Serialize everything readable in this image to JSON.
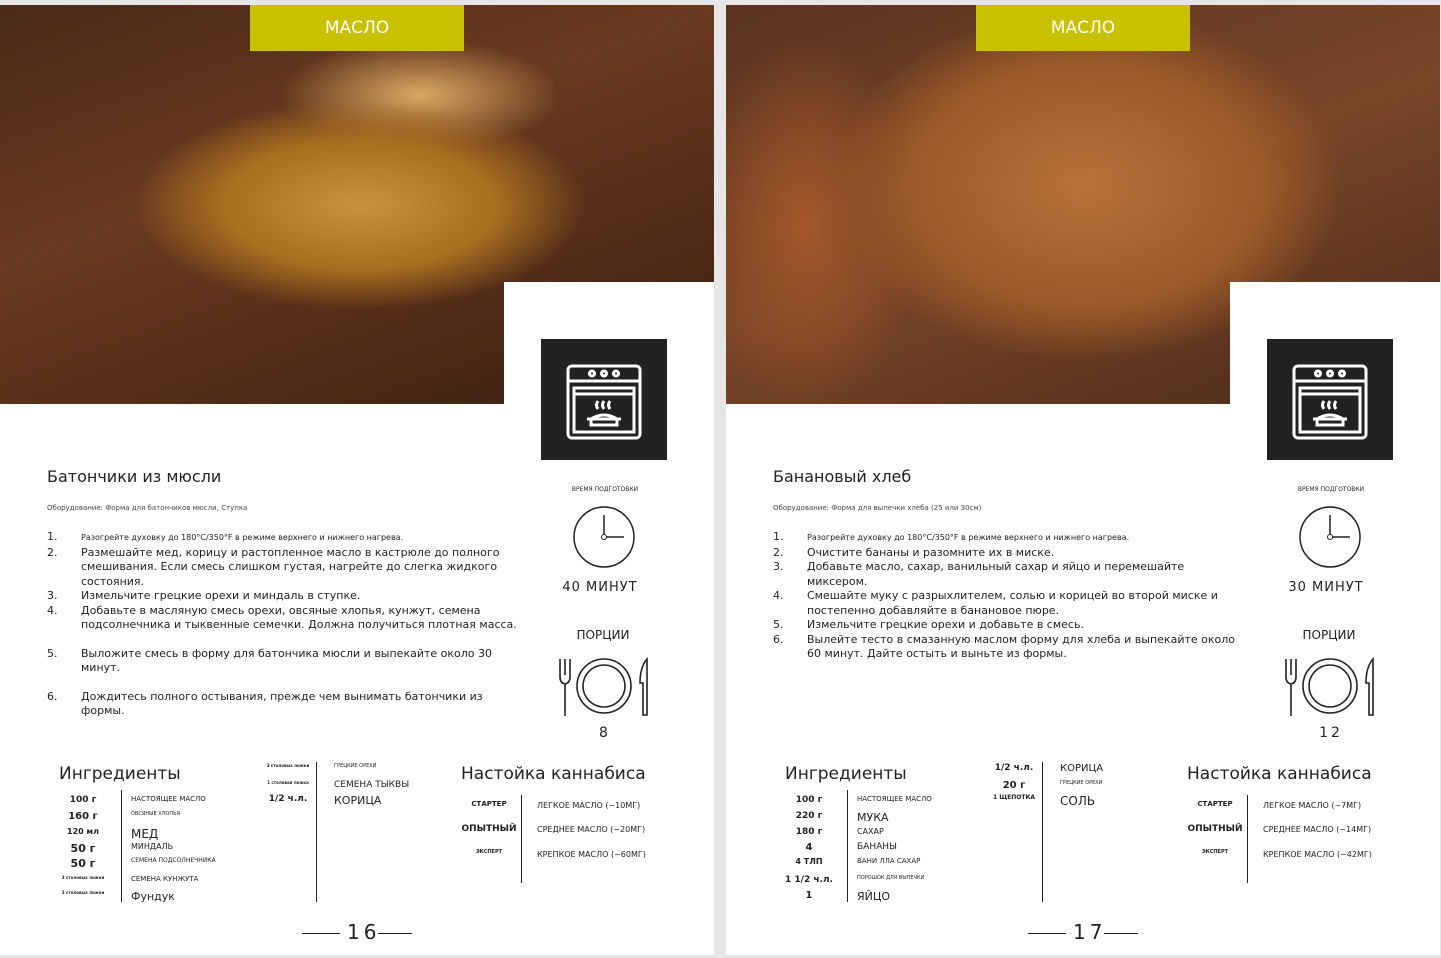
{
  "colors": {
    "tag": "#c9c100",
    "icon_box": "#222222"
  },
  "pages": [
    {
      "tag": "МАСЛО",
      "title": "Батончики из мюсли",
      "equipment": "Оборудование: Форма для батончиков мюсли, Ступка",
      "steps": [
        {
          "num": "1.",
          "text": "Разогрейте духовку до 180°C/350°F в режиме верхнего и нижнего нагрева.",
          "small": true
        },
        {
          "num": "2.",
          "text": "Размешайте мед, корицу и растопленное масло в кастрюле до полного смешивания. Если смесь слишком густая, нагрейте до слегка жидкого состояния."
        },
        {
          "num": "3.",
          "text": "Измельчите грецкие орехи и миндаль в ступке."
        },
        {
          "num": "4.",
          "text": "Добавьте в масляную смесь орехи, овсяные хлопья, кунжут, семена подсолнечника и тыквенные семечки. Должна получиться плотная масса."
        },
        {
          "num": "5.",
          "text": "Выложите смесь в форму для батончика мюсли и выпекайте около 30 минут.",
          "gap": true
        },
        {
          "num": "6.",
          "text": "Дождитесь полного остывания, прежде чем вынимать батончики из формы.",
          "gap": true
        }
      ],
      "prep_label": "ВРЕМЯ ПОДГОТОВКИ",
      "prep_time": "40 МИНУТ",
      "servings_label": "ПОРЦИИ",
      "servings": "8",
      "ingredients_title": "Ингредиенты",
      "ingredients_col1": [
        {
          "amount": "100 г",
          "name": "НАСТОЯЩЕЕ МАСЛО",
          "as": 9,
          "ns": 7
        },
        {
          "amount": "160 г",
          "name": "ОВСЯНЫЕ ХЛОПЬЯ",
          "as": 10,
          "ns": 5
        },
        {
          "amount": "120 мл",
          "name": "МЕД",
          "as": 8,
          "ns": 12
        },
        {
          "amount": "50 г",
          "name": "МИНДАЛЬ",
          "as": 11,
          "ns": 8
        },
        {
          "amount": "50 г",
          "name": "СЕМЕНА ПОДСОЛНЕЧНИКА",
          "as": 11,
          "ns": 6
        },
        {
          "amount": "3 столовых ложки",
          "name": "СЕМЕНА КУНЖУТА",
          "as": 4,
          "ns": 7
        },
        {
          "amount": "3 столовых ложки",
          "name": "Фундук",
          "as": 4,
          "ns": 11
        }
      ],
      "ingredients_col2": [
        {
          "amount": "3 столовых ложки",
          "name": "ГРЕЦКИЕ ОРЕХИ",
          "as": 4,
          "ns": 5
        },
        {
          "amount": "1 столовая ложка",
          "name": "СЕМЕНА ТЫКВЫ",
          "as": 4,
          "ns": 9
        },
        {
          "amount": "1/2 ч.л.",
          "name": "КОРИЦА",
          "as": 9,
          "ns": 11
        }
      ],
      "cannabis_title": "Настойка каннабиса",
      "cannabis": [
        {
          "level": "СТАРТЕР",
          "oil": "ЛЕГКОЕ МАСЛО (~10МГ)",
          "ls": 7
        },
        {
          "level": "ОПЫТНЫЙ",
          "oil": "СРЕДНЕЕ МАСЛО (~20МГ)",
          "ls": 9
        },
        {
          "level": "ЭКСПЕРТ",
          "oil": "КРЕПКОЕ МАСЛО (~60МГ)",
          "ls": 5
        }
      ],
      "page_number": "16"
    },
    {
      "tag": "МАСЛО",
      "title": "Банановый хлеб",
      "equipment": "Оборудование: Форма для выпечки хлеба (25 или 30см)",
      "steps": [
        {
          "num": "1.",
          "text": "Разогрейте духовку до 180°C/350°F в режиме верхнего и нижнего нагрева.",
          "small": true
        },
        {
          "num": "2.",
          "text": "Очистите бананы и разомните их в миске."
        },
        {
          "num": "3.",
          "text": "Добавьте масло, сахар, ванильный сахар и яйцо и перемешайте миксером."
        },
        {
          "num": "4.",
          "text": "Смешайте муку с разрыхлителем, солью и корицей во второй миске и постепенно добавляйте в банановое пюре."
        },
        {
          "num": "5.",
          "text": "Измельчите грецкие орехи и добавьте в смесь."
        },
        {
          "num": "6.",
          "text": "Вылейте тесто в смазанную маслом форму для хлеба и выпекайте около 60 минут. Дайте остыть и выньте из формы."
        }
      ],
      "prep_label": "ВРЕМЯ ПОДГОТОВКИ",
      "prep_time": "30 МИНУТ",
      "servings_label": "ПОРЦИИ",
      "servings": "12",
      "ingredients_title": "Ингредиенты",
      "ingredients_col1": [
        {
          "amount": "100 г",
          "name": "НАСТОЯЩЕЕ МАСЛО",
          "as": 9,
          "ns": 7
        },
        {
          "amount": "220 г",
          "name": "МУКА",
          "as": 9,
          "ns": 11
        },
        {
          "amount": "180 г",
          "name": "САХАР",
          "as": 9,
          "ns": 8
        },
        {
          "amount": "4",
          "name": "БАНАНЫ",
          "as": 10,
          "ns": 9
        },
        {
          "amount": "4 ТЛП",
          "name": "ВАНИ ЛЛА САХАР",
          "as": 8,
          "ns": 7
        },
        {
          "amount": "1 1/2 ч.л.",
          "name": "ПОРОШОК ДЛЯ ВЫПЕЧКИ",
          "as": 9,
          "ns": 5
        },
        {
          "amount": "1",
          "name": "ЯЙЦО",
          "as": 10,
          "ns": 11
        }
      ],
      "ingredients_col2": [
        {
          "amount": "1/2 ч.л.",
          "name": "КОРИЦА",
          "as": 9,
          "ns": 10
        },
        {
          "amount": "20 г",
          "name": "ГРЕЦКИЕ ОРЕХИ",
          "as": 10,
          "ns": 5
        },
        {
          "amount": "1 ЩЕПОТКА",
          "name": "СОЛЬ",
          "as": 6,
          "ns": 12
        }
      ],
      "cannabis_title": "Настойка каннабиса",
      "cannabis": [
        {
          "level": "СТАРТЕР",
          "oil": "ЛЕГКОЕ МАСЛО (~7МГ)",
          "ls": 7
        },
        {
          "level": "ОПЫТНЫЙ",
          "oil": "СРЕДНЕЕ МАСЛО (~14МГ)",
          "ls": 9
        },
        {
          "level": "ЭКСПЕРТ",
          "oil": "КРЕПКОЕ МАСЛО (~42МГ)",
          "ls": 5
        }
      ],
      "page_number": "17"
    }
  ]
}
